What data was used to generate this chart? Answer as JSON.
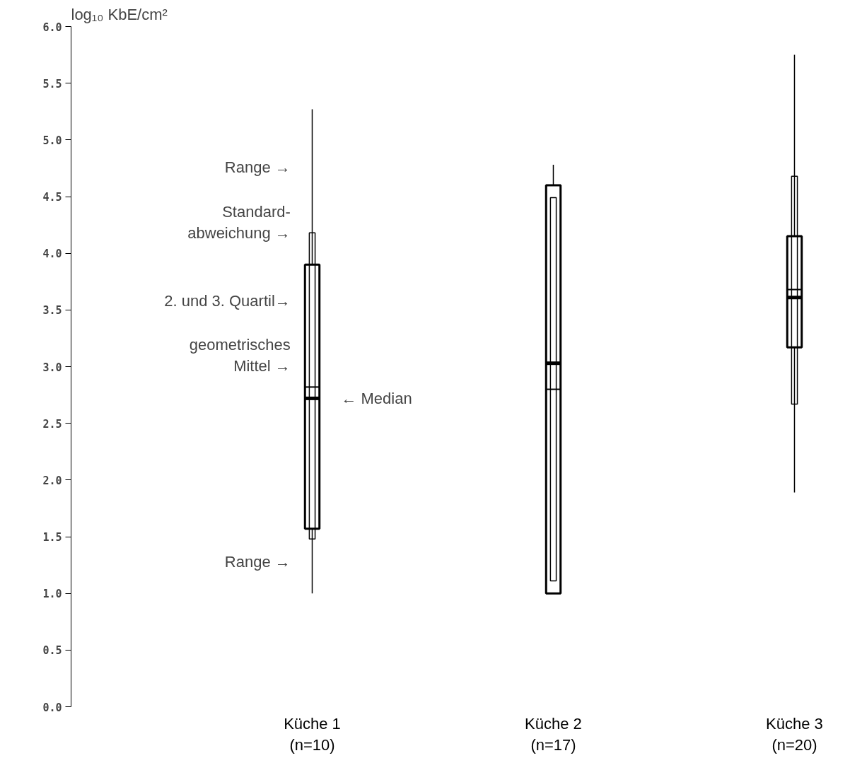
{
  "chart_data": {
    "type": "box",
    "ylabel": "log₁₀ KbE/cm²",
    "categories": [
      "Küche 1\n(n=10)",
      "Küche 2\n(n=17)",
      "Küche 3\n(n=20)"
    ],
    "ylim": [
      0,
      6.0
    ],
    "yticks": [
      {
        "value": 0,
        "label": "0.0"
      },
      {
        "value": 0.5,
        "label": "0.5"
      },
      {
        "value": 1,
        "label": "1.0"
      },
      {
        "value": 1.5,
        "label": "1.5"
      },
      {
        "value": 2,
        "label": "2.0"
      },
      {
        "value": 2.5,
        "label": "2.5"
      },
      {
        "value": 3,
        "label": "3.0"
      },
      {
        "value": 3.5,
        "label": "3.5"
      },
      {
        "value": 4,
        "label": "4.0"
      },
      {
        "value": 4.5,
        "label": "4.5"
      },
      {
        "value": 5,
        "label": "5.0"
      },
      {
        "value": 5.5,
        "label": "5.5"
      },
      {
        "value": 6,
        "label": "6.0"
      }
    ],
    "grid": false,
    "series": [
      {
        "color": "#000000",
        "boxes": [
          {
            "low": 1.0,
            "q1": 1.57,
            "median": 2.72,
            "q3": 3.9,
            "high": 5.27,
            "mean": 2.82
          },
          {
            "low": 1.0,
            "q1": 1.0,
            "median": 3.03,
            "q3": 4.6,
            "high": 4.78,
            "mean": 2.8
          },
          {
            "low": 1.89,
            "q1": 3.17,
            "median": 3.61,
            "q3": 4.15,
            "high": 5.75,
            "mean": 3.68
          }
        ]
      },
      {
        "type": "bar",
        "color": "#000000",
        "base": [
          1.48,
          1.11,
          2.67
        ],
        "values": [
          2.7,
          3.38,
          2.01
        ]
      }
    ],
    "annotations": [
      "Range →",
      {
        "text": "Standard-\nabweichung →",
        "x": "Küche 1\n(n=10)",
        "y": 4.1
      },
      {
        "text": "2. und 3. Quartil→",
        "x": "Küche 1\n(n=10)",
        "y": 3.5
      },
      {
        "text": "geometrisches\nMittel →",
        "x": "Küche 1\n(n=10)",
        "y": 2.93
      },
      {
        "text": "← Median",
        "x": "Küche 1\n(n=10)",
        "y": 2.72
      },
      "Range →"
    ]
  }
}
